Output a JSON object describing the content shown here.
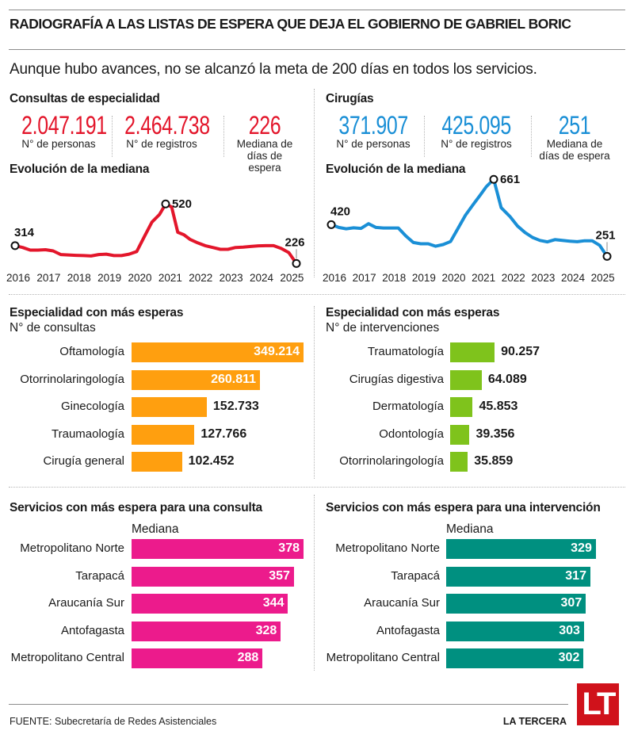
{
  "header": {
    "title": "RADIOGRAFÍA A LAS LISTAS DE ESPERA QUE DEJA EL GOBIERNO DE GABRIEL BORIC",
    "subtitle": "Aunque hubo avances, no se alcanzó la meta de 200 días en todos los servicios."
  },
  "colors": {
    "consultas": "#e3162b",
    "cirugias": "#1a8fd6",
    "especialidad_consultas": "#ff9f0f",
    "especialidad_cirugias": "#7fc31c",
    "servicios_consulta": "#ec1b8c",
    "servicios_intervencion": "#009080",
    "logo": "#d0121b"
  },
  "consultas": {
    "heading": "Consultas de especialidad",
    "kpis": [
      {
        "value": "2.047.191",
        "label": "N° de personas"
      },
      {
        "value": "2.464.738",
        "label": "N° de registros"
      },
      {
        "value": "226",
        "label": "Mediana de días de espera"
      }
    ],
    "evolution_heading": "Evolución de la mediana"
  },
  "cirugias": {
    "heading": "Cirugías",
    "kpis": [
      {
        "value": "371.907",
        "label": "N° de personas"
      },
      {
        "value": "425.095",
        "label": "N° de registros"
      },
      {
        "value": "251",
        "label": "Mediana de días de espera"
      }
    ],
    "evolution_heading": "Evolución de la mediana"
  },
  "footer": {
    "source": "FUENTE: Subecretaría de Redes Asistenciales",
    "brand": "LA TERCERA",
    "logo_text": "LT"
  },
  "chart_data": [
    {
      "id": "consultas_evolucion",
      "type": "line",
      "title": "Evolución de la mediana",
      "series_name": "Consultas de especialidad",
      "x_ticks": [
        "2016",
        "2017",
        "2018",
        "2019",
        "2020",
        "2021",
        "2022",
        "2023",
        "2024",
        "2025"
      ],
      "x": [
        2016.0,
        2016.25,
        2016.5,
        2016.75,
        2017.0,
        2017.25,
        2017.5,
        2017.75,
        2018.0,
        2018.25,
        2018.5,
        2018.75,
        2019.0,
        2019.25,
        2019.5,
        2019.75,
        2020.0,
        2020.25,
        2020.5,
        2020.75,
        2020.95,
        2021.15,
        2021.35,
        2021.55,
        2021.75,
        2022.0,
        2022.25,
        2022.5,
        2022.75,
        2023.0,
        2023.25,
        2023.5,
        2023.75,
        2024.0,
        2024.25,
        2024.5,
        2024.75,
        2025.0,
        2025.25
      ],
      "y": [
        314,
        305,
        292,
        292,
        294,
        288,
        270,
        268,
        266,
        265,
        263,
        270,
        272,
        265,
        265,
        272,
        285,
        358,
        430,
        468,
        520,
        505,
        380,
        368,
        345,
        328,
        314,
        305,
        296,
        296,
        305,
        307,
        310,
        313,
        314,
        314,
        300,
        280,
        226
      ],
      "annotations": [
        {
          "label": "314",
          "x": 2016.0,
          "y": 314
        },
        {
          "label": "520",
          "x": 2020.95,
          "y": 520
        },
        {
          "label": "226",
          "x": 2025.25,
          "y": 226
        }
      ],
      "ylim": [
        200,
        560
      ]
    },
    {
      "id": "cirugias_evolucion",
      "type": "line",
      "title": "Evolución de la mediana",
      "series_name": "Cirugías",
      "x_ticks": [
        "2016",
        "2017",
        "2018",
        "2019",
        "2020",
        "2021",
        "2022",
        "2023",
        "2024",
        "2025"
      ],
      "x": [
        2016.0,
        2016.25,
        2016.5,
        2016.75,
        2017.0,
        2017.25,
        2017.5,
        2017.75,
        2018.0,
        2018.25,
        2018.5,
        2018.75,
        2019.0,
        2019.25,
        2019.5,
        2019.75,
        2020.0,
        2020.25,
        2020.5,
        2020.75,
        2021.0,
        2021.2,
        2021.45,
        2021.7,
        2022.0,
        2022.25,
        2022.5,
        2022.75,
        2023.0,
        2023.25,
        2023.5,
        2023.75,
        2024.0,
        2024.25,
        2024.5,
        2024.75,
        2025.0,
        2025.25
      ],
      "y": [
        420,
        405,
        398,
        403,
        400,
        425,
        405,
        402,
        402,
        402,
        360,
        325,
        318,
        318,
        305,
        314,
        330,
        400,
        470,
        525,
        578,
        622,
        661,
        510,
        462,
        412,
        378,
        352,
        336,
        328,
        340,
        336,
        332,
        329,
        334,
        334,
        310,
        251
      ],
      "annotations": [
        {
          "label": "420",
          "x": 2016.0,
          "y": 420
        },
        {
          "label": "661",
          "x": 2021.45,
          "y": 661
        },
        {
          "label": "251",
          "x": 2025.25,
          "y": 251
        }
      ],
      "ylim": [
        240,
        700
      ]
    },
    {
      "id": "especialidad_consultas",
      "type": "bar",
      "title": "Especialidad con más esperas",
      "subtitle": "N° de consultas",
      "categories": [
        "Oftamología",
        "Otorrinolaringología",
        "Ginecología",
        "Traumaología",
        "Cirugía general"
      ],
      "values": [
        349214,
        260811,
        152733,
        127766,
        102452
      ],
      "value_labels": [
        "349.214",
        "260.811",
        "152.733",
        "127.766",
        "102.452"
      ],
      "max": 349214
    },
    {
      "id": "especialidad_cirugias",
      "type": "bar",
      "title": "Especialidad con más esperas",
      "subtitle": "N° de intervenciones",
      "categories": [
        "Traumatología",
        "Cirugías digestiva",
        "Dermatología",
        "Odontología",
        "Otorrinolaringología"
      ],
      "values": [
        90257,
        64089,
        45853,
        39356,
        35859
      ],
      "value_labels": [
        "90.257",
        "64.089",
        "45.853",
        "39.356",
        "35.859"
      ],
      "max": 349214
    },
    {
      "id": "servicios_consulta",
      "type": "bar",
      "title": "Servicios con más espera para una consulta",
      "subtitle": "Mediana",
      "categories": [
        "Metropolitano Norte",
        "Tarapacá",
        "Araucanía Sur",
        "Antofagasta",
        "Metropolitano Central"
      ],
      "values": [
        378,
        357,
        344,
        328,
        288
      ],
      "value_labels": [
        "378",
        "357",
        "344",
        "328",
        "288"
      ],
      "max": 378
    },
    {
      "id": "servicios_intervencion",
      "type": "bar",
      "title": "Servicios con más espera para una intervención",
      "subtitle": "Mediana",
      "categories": [
        "Metropolitano Norte",
        "Tarapacá",
        "Araucanía Sur",
        "Antofagasta",
        "Metropolitano Central"
      ],
      "values": [
        329,
        317,
        307,
        303,
        302
      ],
      "value_labels": [
        "329",
        "317",
        "307",
        "303",
        "302"
      ],
      "max": 378
    }
  ]
}
